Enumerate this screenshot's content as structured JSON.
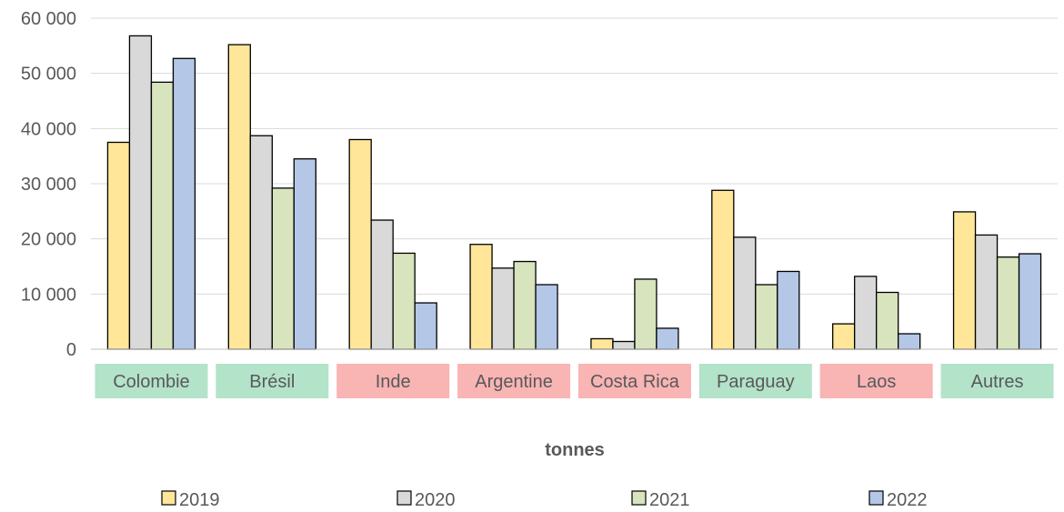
{
  "chart_data": {
    "type": "bar",
    "title": "",
    "xlabel": "tonnes",
    "ylabel": "",
    "ylim": [
      0,
      60000
    ],
    "yticks": [
      0,
      10000,
      20000,
      30000,
      40000,
      50000,
      60000
    ],
    "ytick_labels": [
      "0",
      "10 000",
      "20 000",
      "30 000",
      "40 000",
      "50 000",
      "60 000"
    ],
    "categories": [
      "Colombie",
      "Brésil",
      "Inde",
      "Argentine",
      "Costa Rica",
      "Paraguay",
      "Laos",
      "Autres"
    ],
    "category_highlight": [
      "green",
      "green",
      "red",
      "red",
      "red",
      "green",
      "red",
      "green"
    ],
    "highlight_colors": {
      "green": "#b3e3c9",
      "red": "#f9b4b4"
    },
    "grid": true,
    "legend_position": "bottom",
    "series": [
      {
        "name": "2019",
        "color": "#ffe699",
        "values": [
          37500,
          55200,
          38000,
          19000,
          1900,
          28800,
          4600,
          24900
        ]
      },
      {
        "name": "2020",
        "color": "#d9d9d9",
        "values": [
          56800,
          38700,
          23400,
          14700,
          1400,
          20300,
          13200,
          20700
        ]
      },
      {
        "name": "2021",
        "color": "#d7e4bd",
        "values": [
          48400,
          29200,
          17400,
          15900,
          12700,
          11700,
          10300,
          16700
        ]
      },
      {
        "name": "2022",
        "color": "#b4c7e7",
        "values": [
          52700,
          34500,
          8400,
          11700,
          3800,
          14100,
          2800,
          17300
        ]
      }
    ]
  }
}
